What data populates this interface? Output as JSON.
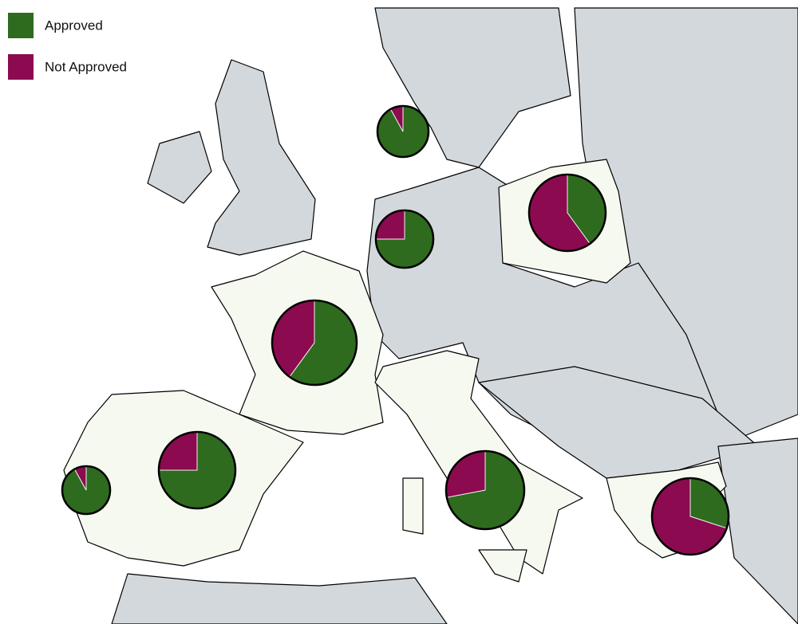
{
  "chart_data": {
    "type": "pie",
    "categories": [
      null,
      null,
      null,
      null,
      null,
      null,
      null,
      null
    ],
    "series": [
      {
        "name": "Approved",
        "color": "#2e6b1e",
        "values": [
          92,
          75,
          40,
          60,
          75,
          92,
          72,
          30
        ]
      },
      {
        "name": "Not Approved",
        "color": "#8c0a4f",
        "values": [
          8,
          25,
          60,
          40,
          25,
          8,
          28,
          70
        ]
      }
    ]
  }
}
